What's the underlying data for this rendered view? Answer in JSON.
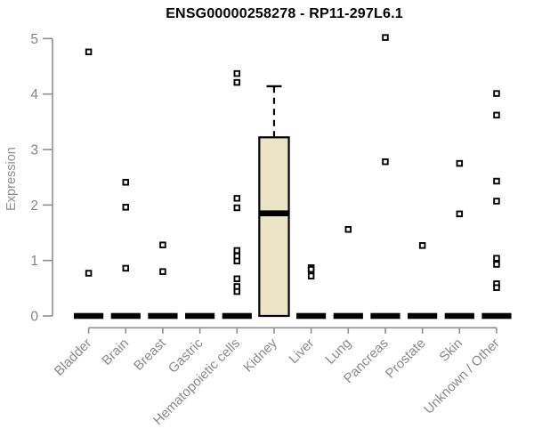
{
  "chart_data": {
    "type": "boxplot",
    "title": "ENSG00000258278 - RP11-297L6.1",
    "ylabel": "Expression",
    "xlabel": "",
    "ylim": [
      0,
      5
    ],
    "y_ticks": [
      0,
      1,
      2,
      3,
      4,
      5
    ],
    "grid": false,
    "legend": null,
    "categories": [
      "Bladder",
      "Brain",
      "Breast",
      "Gastric",
      "Hematopoietic cells",
      "Kidney",
      "Liver",
      "Lung",
      "Pancreas",
      "Prostate",
      "Skin",
      "Unknown / Other"
    ],
    "boxes": [
      {
        "category": "Bladder",
        "q1": 0,
        "median": 0,
        "q3": 0,
        "whisker_low": 0,
        "whisker_high": 0,
        "outliers": [
          4.76,
          0.77
        ]
      },
      {
        "category": "Brain",
        "q1": 0,
        "median": 0,
        "q3": 0,
        "whisker_low": 0,
        "whisker_high": 0,
        "outliers": [
          2.41,
          1.96,
          0.86
        ]
      },
      {
        "category": "Breast",
        "q1": 0,
        "median": 0,
        "q3": 0,
        "whisker_low": 0,
        "whisker_high": 0,
        "outliers": [
          1.28,
          0.8
        ]
      },
      {
        "category": "Gastric",
        "q1": 0,
        "median": 0,
        "q3": 0,
        "whisker_low": 0,
        "whisker_high": 0,
        "outliers": []
      },
      {
        "category": "Hematopoietic cells",
        "q1": 0,
        "median": 0,
        "q3": 0,
        "whisker_low": 0,
        "whisker_high": 0,
        "outliers": [
          4.37,
          4.21,
          2.12,
          1.95,
          1.18,
          1.08,
          0.99,
          0.67,
          0.53,
          0.44
        ]
      },
      {
        "category": "Kidney",
        "q1": 0,
        "median": 1.85,
        "q3": 3.22,
        "whisker_low": 0,
        "whisker_high": 4.14,
        "outliers": []
      },
      {
        "category": "Liver",
        "q1": 0,
        "median": 0,
        "q3": 0,
        "whisker_low": 0,
        "whisker_high": 0,
        "outliers": [
          0.87,
          0.84,
          0.72
        ]
      },
      {
        "category": "Lung",
        "q1": 0,
        "median": 0,
        "q3": 0,
        "whisker_low": 0,
        "whisker_high": 0,
        "outliers": [
          1.56
        ]
      },
      {
        "category": "Pancreas",
        "q1": 0,
        "median": 0,
        "q3": 0,
        "whisker_low": 0,
        "whisker_high": 0,
        "outliers": [
          5.02,
          2.78
        ]
      },
      {
        "category": "Prostate",
        "q1": 0,
        "median": 0,
        "q3": 0,
        "whisker_low": 0,
        "whisker_high": 0,
        "outliers": [
          1.27
        ]
      },
      {
        "category": "Skin",
        "q1": 0,
        "median": 0,
        "q3": 0,
        "whisker_low": 0,
        "whisker_high": 0,
        "outliers": [
          2.75,
          1.84
        ]
      },
      {
        "category": "Unknown / Other",
        "q1": 0,
        "median": 0,
        "q3": 0,
        "whisker_low": 0,
        "whisker_high": 0,
        "outliers": [
          4.01,
          3.62,
          2.43,
          2.07,
          1.04,
          0.93,
          0.58,
          0.51
        ]
      }
    ],
    "colors": {
      "box_fill": "#ece4c6",
      "box_stroke": "#000000",
      "median": "#000000",
      "whisker": "#000000",
      "outlier_stroke": "#000000",
      "outlier_fill": "#ffffff",
      "axis": "#8f8f8f",
      "tick_label": "#858585",
      "category_label": "#8a8a8a",
      "title": "#000000",
      "background": "#ffffff"
    }
  }
}
